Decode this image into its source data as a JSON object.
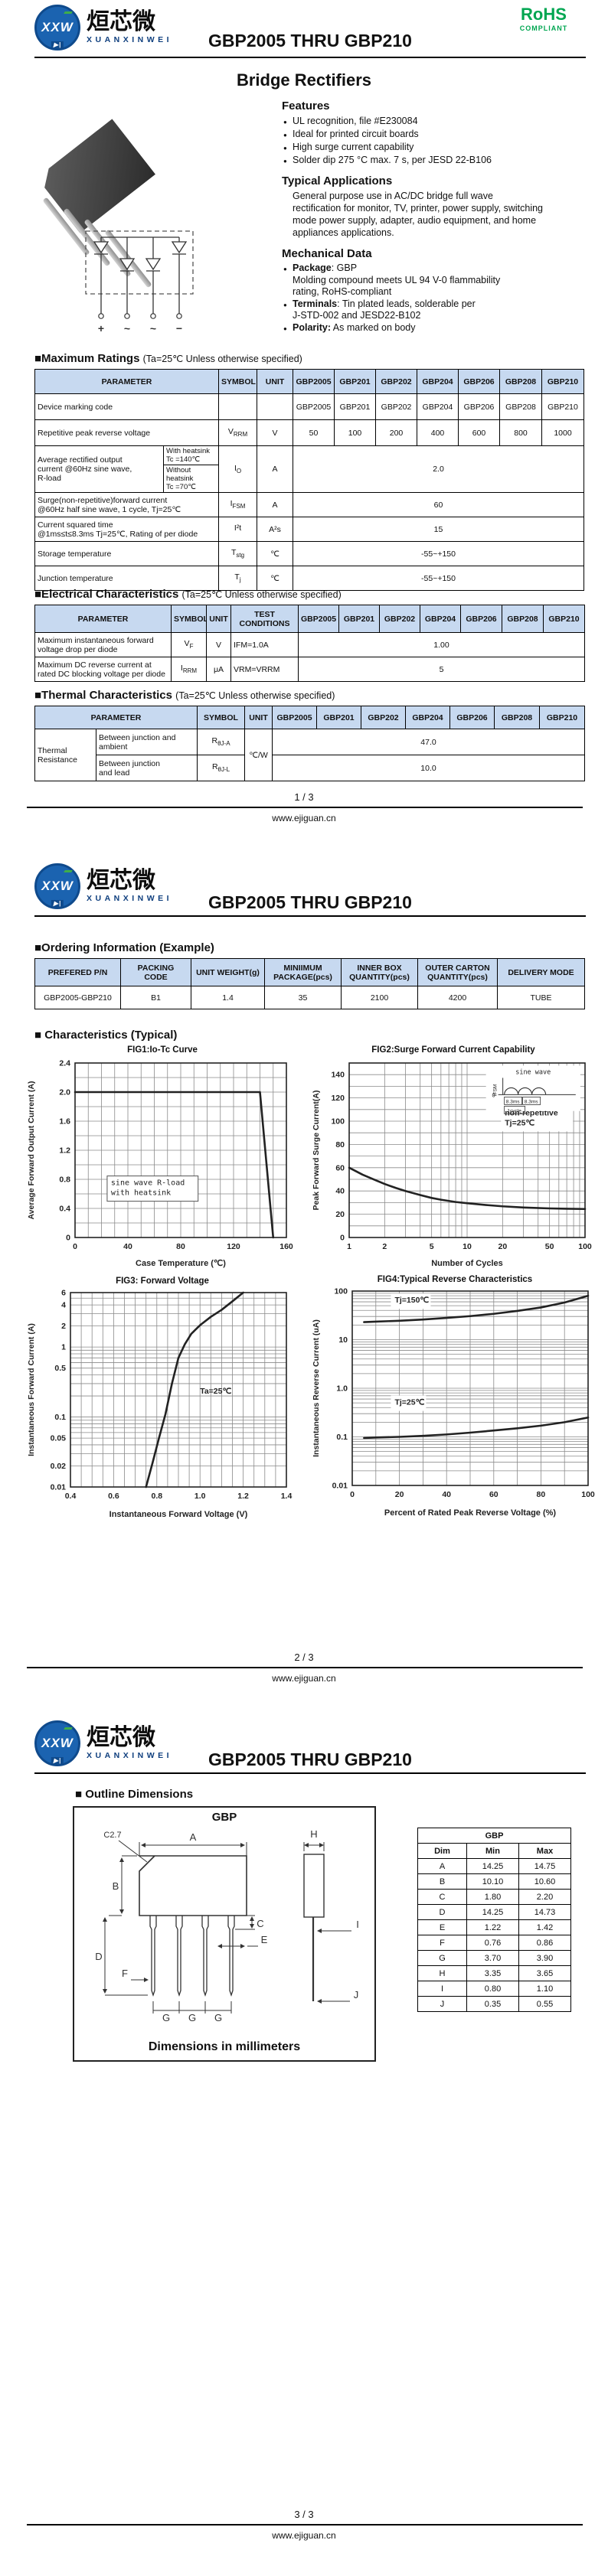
{
  "theme": {
    "accent_green": "#00a651",
    "logo_blue": "#1b63b0",
    "table_header_bg": "#c7d9f0"
  },
  "devices": [
    "GBP2005",
    "GBP201",
    "GBP202",
    "GBP204",
    "GBP206",
    "GBP208",
    "GBP210"
  ],
  "header": {
    "title": "GBP2005 THRU GBP210",
    "logo_initials": "XXW",
    "logo_cn": "烜芯微",
    "logo_en": "XUANXINWEI",
    "logo_diode": "▶|",
    "rohs": "RoHS",
    "rohs_compliant": "COMPLIANT"
  },
  "footer": {
    "website": "www.ejiguan.cn",
    "page1": "1 / 3",
    "page2": "2 / 3",
    "page3": "3 / 3"
  },
  "page1": {
    "doc_title": "Bridge Rectifiers",
    "features": {
      "heading": "Features",
      "items": [
        "UL recognition, file #E230084",
        "Ideal for printed circuit boards",
        "High surge current capability",
        "Solder dip 275 °C max. 7 s, per JESD 22-B106"
      ]
    },
    "applications": {
      "heading": "Typical Applications",
      "text": "General purpose use in AC/DC bridge full wave\nrectification for monitor, TV, printer, power supply, switching\nmode power supply, adapter, audio equipment, and home\nappliances applications."
    },
    "mechanical": {
      "heading": "Mechanical Data",
      "items": [
        {
          "label": "Package",
          "text": ": GBP\nMolding compound meets UL 94 V-0 flammability\nrating, RoHS-compliant"
        },
        {
          "label": "Terminals",
          "text": ": Tin plated leads, solderable  per\nJ-STD-002 and JESD22-B102"
        },
        {
          "label": "Polarity:",
          "text": " As marked on body"
        }
      ]
    },
    "schematic": {
      "terminals": [
        "+",
        "~",
        "~",
        "−"
      ]
    },
    "max_ratings": {
      "heading": "■Maximum Ratings",
      "condition": "(Ta=25℃ Unless otherwise specified)",
      "col_parameter": "PARAMETER",
      "col_symbol": "SYMBOL",
      "col_unit": "UNIT",
      "rows": {
        "marking": {
          "param": "Device marking code"
        },
        "vrrm": {
          "param": "Repetitive peak reverse voltage",
          "sym_b": "V",
          "sym_s": "RRM",
          "unit": "V",
          "values": [
            "50",
            "100",
            "200",
            "400",
            "600",
            "800",
            "1000"
          ]
        },
        "io": {
          "param": "Average rectified output\ncurrent @60Hz sine wave,\nR-load",
          "sub1": "With heatsink\nTc =140℃",
          "sub2": "Without heatsink\nTc =70℃",
          "sym_b": "I",
          "sym_s": "O",
          "unit": "A",
          "value": "2.0"
        },
        "ifsm": {
          "param": "Surge(non-repetitive)forward current\n@60Hz half sine wave, 1 cycle, Tj=25℃",
          "sym_b": "I",
          "sym_s": "FSM",
          "unit": "A",
          "value": "60"
        },
        "i2t": {
          "param": "Current squared time\n@1ms≤t≤8.3ms Tj=25℃, Rating of per diode",
          "sym_b": "I²t",
          "sym_s": "",
          "unit": "A²s",
          "value": "15"
        },
        "tstg": {
          "param": "Storage temperature",
          "sym_b": "T",
          "sym_s": "stg",
          "unit": "℃",
          "value": "-55~+150"
        },
        "tj": {
          "param": "Junction temperature",
          "sym_b": "T",
          "sym_s": "j",
          "unit": "℃",
          "value": "-55~+150"
        }
      }
    },
    "electrical": {
      "heading": "■Electrical Characteristics",
      "condition": "(Ta=25℃ Unless otherwise specified)",
      "col_parameter": "PARAMETER",
      "col_symbol": "SYMBOL",
      "col_unit": "UNIT",
      "col_test": "TEST\nCONDITIONS",
      "rows": {
        "vf": {
          "param": "Maximum instantaneous forward\nvoltage drop per diode",
          "sym_b": "V",
          "sym_s": "F",
          "unit": "V",
          "test": "IFM=1.0A",
          "value": "1.00"
        },
        "irrm": {
          "param": "Maximum DC reverse current at\nrated DC blocking voltage per diode",
          "sym_b": "I",
          "sym_s": "RRM",
          "unit": "μA",
          "test": "VRM=VRRM",
          "value": "5"
        }
      }
    },
    "thermal": {
      "heading": "■Thermal Characteristics",
      "condition": "(Ta=25℃ Unless otherwise specified)",
      "col_parameter": "PARAMETER",
      "col_symbol": "SYMBOL",
      "col_unit": "UNIT",
      "group": "Thermal\nResistance",
      "rows": {
        "rja": {
          "param": "Between junction and\nambient",
          "sym_b": "R",
          "sym_s": "θJ-A",
          "unit": "℃/W",
          "value": "47.0"
        },
        "rjl": {
          "param": "Between junction\nand lead",
          "sym_b": "R",
          "sym_s": "θJ-L",
          "value": "10.0"
        }
      }
    }
  },
  "page2": {
    "ordering": {
      "heading": "■Ordering Information (Example)",
      "headers": [
        "PREFERED P/N",
        "PACKING\nCODE",
        "UNIT WEIGHT(g)",
        "MINIIMUM\nPACKAGE(pcs)",
        "INNER BOX\nQUANTITY(pcs)",
        "OUTER CARTON\nQUANTITY(pcs)",
        "DELIVERY MODE"
      ],
      "row": [
        "GBP2005-GBP210",
        "B1",
        "1.4",
        "35",
        "2100",
        "4200",
        "TUBE"
      ]
    },
    "characteristics_heading": "■ Characteristics (Typical)"
  },
  "page3": {
    "outline_heading": "■ Outline Dimensions",
    "drawing_title": "GBP",
    "drawing_caption": "Dimensions in millimeters",
    "marks": {
      "a": "A",
      "b": "B",
      "c": "C",
      "c27": "C2.7",
      "d": "D",
      "e": "E",
      "f": "F",
      "g": "G",
      "h": "H",
      "i": "I",
      "j": "J"
    },
    "dims_table": {
      "title": "GBP",
      "headers": [
        "Dim",
        "Min",
        "Max"
      ],
      "rows": [
        [
          "A",
          "14.25",
          "14.75"
        ],
        [
          "B",
          "10.10",
          "10.60"
        ],
        [
          "C",
          "1.80",
          "2.20"
        ],
        [
          "D",
          "14.25",
          "14.73"
        ],
        [
          "E",
          "1.22",
          "1.42"
        ],
        [
          "F",
          "0.76",
          "0.86"
        ],
        [
          "G",
          "3.70",
          "3.90"
        ],
        [
          "H",
          "3.35",
          "3.65"
        ],
        [
          "I",
          "0.80",
          "1.10"
        ],
        [
          "J",
          "0.35",
          "0.55"
        ]
      ]
    }
  },
  "chart_data": [
    {
      "type": "line",
      "title": "FIG1:Io-Tc Curve",
      "xlabel": "Case Temperature (℃)",
      "ylabel": "Average Forward Output Current (A)",
      "x": {
        "type": "linear",
        "min": 0,
        "max": 160,
        "grid": 10,
        "ticks": [
          0,
          40,
          80,
          120,
          160
        ],
        "tickLabels": [
          "0",
          "40",
          "80",
          "120",
          "160"
        ]
      },
      "y": {
        "type": "linear",
        "min": 0,
        "max": 2.4,
        "grid": 0.2,
        "ticks": [
          0,
          0.4,
          0.8,
          1.2,
          1.6,
          2.0,
          2.4
        ],
        "tickLabels": [
          "0",
          "0.4",
          "0.8",
          "1.2",
          "1.6",
          "2.0",
          "2.4"
        ]
      },
      "series": [
        {
          "name": "Io",
          "x": [
            0,
            140,
            150
          ],
          "y": [
            2.0,
            2.0,
            0
          ]
        }
      ],
      "ann": [
        {
          "fx": 0.17,
          "fy": 0.7,
          "lines": [
            "sine wave R-load",
            "with heatsink"
          ],
          "box": true,
          "border": true,
          "mono": true
        }
      ]
    },
    {
      "type": "line",
      "title": "FIG2:Surge Forward Current Capability",
      "xlabel": "Number of Cycles",
      "ylabel": "Peak Forward Surge Current(A)",
      "x": {
        "type": "log",
        "min": 1,
        "max": 100,
        "ticks": [
          1,
          2,
          5,
          10,
          20,
          50,
          100
        ],
        "tickLabels": [
          "1",
          "2",
          "5",
          "10",
          "20",
          "50",
          "100"
        ]
      },
      "y": {
        "type": "linear",
        "min": 0,
        "max": 150,
        "grid": 10,
        "ticks": [
          0,
          20,
          40,
          60,
          80,
          100,
          120,
          140
        ],
        "tickLabels": [
          "0",
          "20",
          "40",
          "60",
          "80",
          "100",
          "120",
          "140"
        ]
      },
      "series": [
        {
          "name": "IFSM",
          "x": [
            1,
            1.3,
            1.7,
            2,
            2.5,
            3,
            4,
            5,
            6,
            8,
            10,
            15,
            20,
            30,
            50,
            70,
            100
          ],
          "y": [
            60,
            54,
            49,
            46,
            42.5,
            40,
            36.5,
            34,
            32.5,
            30.5,
            29.5,
            27.8,
            26.8,
            25.8,
            25,
            24.7,
            24.5
          ]
        }
      ],
      "ann": [
        {
          "fx": 0.66,
          "fy": 0.3,
          "lines": [
            "non-repetitive",
            "Tj=25℃"
          ],
          "box": true,
          "border": false,
          "mono": false
        }
      ],
      "inset": {
        "fx": 0.58,
        "fy": 0.015,
        "w": 0.4,
        "h": 0.26,
        "label": "sine wave",
        "ifsm": "IFSM",
        "zero": "0",
        "ms": "8.3ms",
        "cycle": "1cycle"
      }
    },
    {
      "type": "line",
      "title": "FIG3: Forward Voltage",
      "xlabel": "Instantaneous Forward Voltage (V)",
      "ylabel": "Instantaneous Forward Current (A)",
      "x": {
        "type": "linear",
        "min": 0.4,
        "max": 1.4,
        "grid": 0.05,
        "ticks": [
          0.4,
          0.6,
          0.8,
          1.0,
          1.2,
          1.4
        ],
        "tickLabels": [
          "0.4",
          "0.6",
          "0.8",
          "1.0",
          "1.2",
          "1.4"
        ]
      },
      "y": {
        "type": "log",
        "min": 0.01,
        "max": 6,
        "ticks": [
          0.01,
          0.02,
          0.05,
          0.1,
          0.5,
          1,
          2,
          4,
          6
        ],
        "tickLabels": [
          "0.01",
          "0.02",
          "0.05",
          "0.1",
          "0.5",
          "1",
          "2",
          "4",
          "6"
        ]
      },
      "series": [
        {
          "name": "VF",
          "x": [
            0.75,
            0.78,
            0.81,
            0.84,
            0.87,
            0.9,
            0.93,
            0.96,
            1.0,
            1.05,
            1.1,
            1.15,
            1.2
          ],
          "y": [
            0.01,
            0.022,
            0.05,
            0.11,
            0.3,
            0.7,
            1.1,
            1.55,
            2.05,
            2.7,
            3.4,
            4.5,
            6
          ]
        }
      ],
      "ann": [
        {
          "fx": 0.6,
          "fy": 0.52,
          "lines": [
            "Ta=25℃"
          ],
          "box": false,
          "border": false,
          "mono": false
        }
      ]
    },
    {
      "type": "line",
      "title": "FIG4:Typical Reverse Characteristics",
      "xlabel": "Percent of Rated Peak Reverse Voltage  (%)",
      "ylabel": "Instantaneous Reverse Current (uA)",
      "x": {
        "type": "linear",
        "min": 0,
        "max": 100,
        "grid": 10,
        "ticks": [
          0,
          20,
          40,
          60,
          80,
          100
        ],
        "tickLabels": [
          "0",
          "20",
          "40",
          "60",
          "80",
          "100"
        ]
      },
      "y": {
        "type": "log",
        "min": 0.01,
        "max": 100,
        "ticks": [
          0.01,
          0.1,
          1.0,
          10,
          100
        ],
        "tickLabels": [
          "0.01",
          "0.1",
          "1.0",
          "10",
          "100"
        ]
      },
      "series": [
        {
          "name": "Tj=150℃",
          "x": [
            5,
            10,
            20,
            30,
            40,
            50,
            60,
            70,
            80,
            90,
            100
          ],
          "y": [
            23,
            23.5,
            24.5,
            26,
            28,
            30.5,
            34,
            39,
            46,
            58,
            80
          ]
        },
        {
          "name": "Tj=25℃",
          "x": [
            5,
            10,
            20,
            30,
            40,
            50,
            60,
            70,
            80,
            90,
            100
          ],
          "y": [
            0.095,
            0.097,
            0.1,
            0.105,
            0.112,
            0.122,
            0.135,
            0.15,
            0.17,
            0.2,
            0.25
          ]
        }
      ],
      "ann": [
        {
          "fx": 0.18,
          "fy": 0.06,
          "lines": [
            "Tj=150℃"
          ],
          "box": true,
          "border": false,
          "mono": false
        },
        {
          "fx": 0.18,
          "fy": 0.585,
          "lines": [
            "Tj=25℃"
          ],
          "box": true,
          "border": false,
          "mono": false
        }
      ]
    }
  ]
}
